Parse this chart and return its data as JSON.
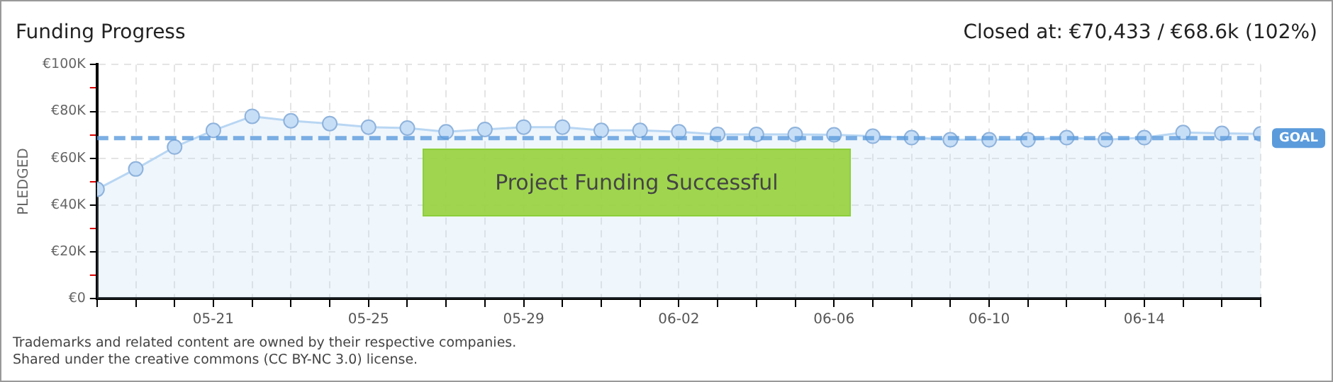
{
  "chart_data": {
    "type": "area",
    "title": "Funding Progress",
    "subtitle": "Closed at: €70,433 / €68.6k (102%)",
    "ylabel": "PLEDGED",
    "x": [
      "--05-18",
      "--05-19",
      "--05-20",
      "--05-21",
      "--05-22",
      "--05-23",
      "--05-24",
      "--05-25",
      "--05-26",
      "--05-27",
      "--05-28",
      "--05-29",
      "--05-30",
      "--05-31",
      "--06-01",
      "--06-02",
      "--06-03",
      "--06-04",
      "--06-05",
      "--06-06",
      "--06-07",
      "--06-08",
      "--06-09",
      "--06-10",
      "--06-11",
      "--06-12",
      "--06-13",
      "--06-14",
      "--06-15",
      "--06-16",
      "--06-17"
    ],
    "series": [
      {
        "color": "#b8d6f3",
        "values": [
          46700,
          55400,
          64800,
          71900,
          77900,
          76000,
          74800,
          73300,
          72900,
          71300,
          72300,
          73300,
          73300,
          71900,
          71900,
          71300,
          70200,
          70200,
          70200,
          70000,
          69400,
          68800,
          67900,
          67900,
          67900,
          68800,
          67900,
          68800,
          71000,
          70600,
          70400
        ]
      }
    ],
    "xlim": [
      "--05-18",
      "--06-17"
    ],
    "xticks": [
      {
        "value": "--05-18",
        "label": null
      },
      {
        "value": "--05-19",
        "label": null
      },
      {
        "value": "--05-20",
        "label": null
      },
      {
        "value": "--05-21",
        "label": "05-21"
      },
      {
        "value": "--05-22",
        "label": null
      },
      {
        "value": "--05-23",
        "label": null
      },
      {
        "value": "--05-24",
        "label": null
      },
      {
        "value": "--05-25",
        "label": "05-25"
      },
      {
        "value": "--05-26",
        "label": null
      },
      {
        "value": "--05-27",
        "label": null
      },
      {
        "value": "--05-28",
        "label": null
      },
      {
        "value": "--05-29",
        "label": "05-29"
      },
      {
        "value": "--05-30",
        "label": null
      },
      {
        "value": "--05-31",
        "label": null
      },
      {
        "value": "--06-01",
        "label": null
      },
      {
        "value": "--06-02",
        "label": "06-02"
      },
      {
        "value": "--06-03",
        "label": null
      },
      {
        "value": "--06-04",
        "label": null
      },
      {
        "value": "--06-05",
        "label": null
      },
      {
        "value": "--06-06",
        "label": "06-06"
      },
      {
        "value": "--06-07",
        "label": null
      },
      {
        "value": "--06-08",
        "label": null
      },
      {
        "value": "--06-09",
        "label": null
      },
      {
        "value": "--06-10",
        "label": "06-10"
      },
      {
        "value": "--06-11",
        "label": null
      },
      {
        "value": "--06-12",
        "label": null
      },
      {
        "value": "--06-13",
        "label": null
      },
      {
        "value": "--06-14",
        "label": "06-14"
      },
      {
        "value": "--06-15",
        "label": null
      },
      {
        "value": "--06-16",
        "label": null
      },
      {
        "value": "--06-17",
        "label": null
      }
    ],
    "ylim": [
      0,
      100000
    ],
    "yticks": [
      {
        "value": 0,
        "label": "€0"
      },
      {
        "value": 10000,
        "label": null
      },
      {
        "value": 20000,
        "label": "€20K"
      },
      {
        "value": 30000,
        "label": null
      },
      {
        "value": 40000,
        "label": "€40K"
      },
      {
        "value": 50000,
        "label": null
      },
      {
        "value": 60000,
        "label": "€60K"
      },
      {
        "value": 70000,
        "label": null
      },
      {
        "value": 80000,
        "label": "€80K"
      },
      {
        "value": 90000,
        "label": null
      },
      {
        "value": 100000,
        "label": "€100K"
      }
    ],
    "ref_lines": [
      {
        "axis": "y",
        "value": 68600,
        "label": "GOAL",
        "color": "#5b9bdc",
        "line_style": "dashed"
      }
    ],
    "grid": true,
    "legend": false,
    "marker": "circle",
    "annotations": [
      "Project Funding Successful",
      "Trademarks and related content are owned by their respective companies.",
      "Shared under the creative commons (CC BY-NC 3.0) license."
    ]
  }
}
